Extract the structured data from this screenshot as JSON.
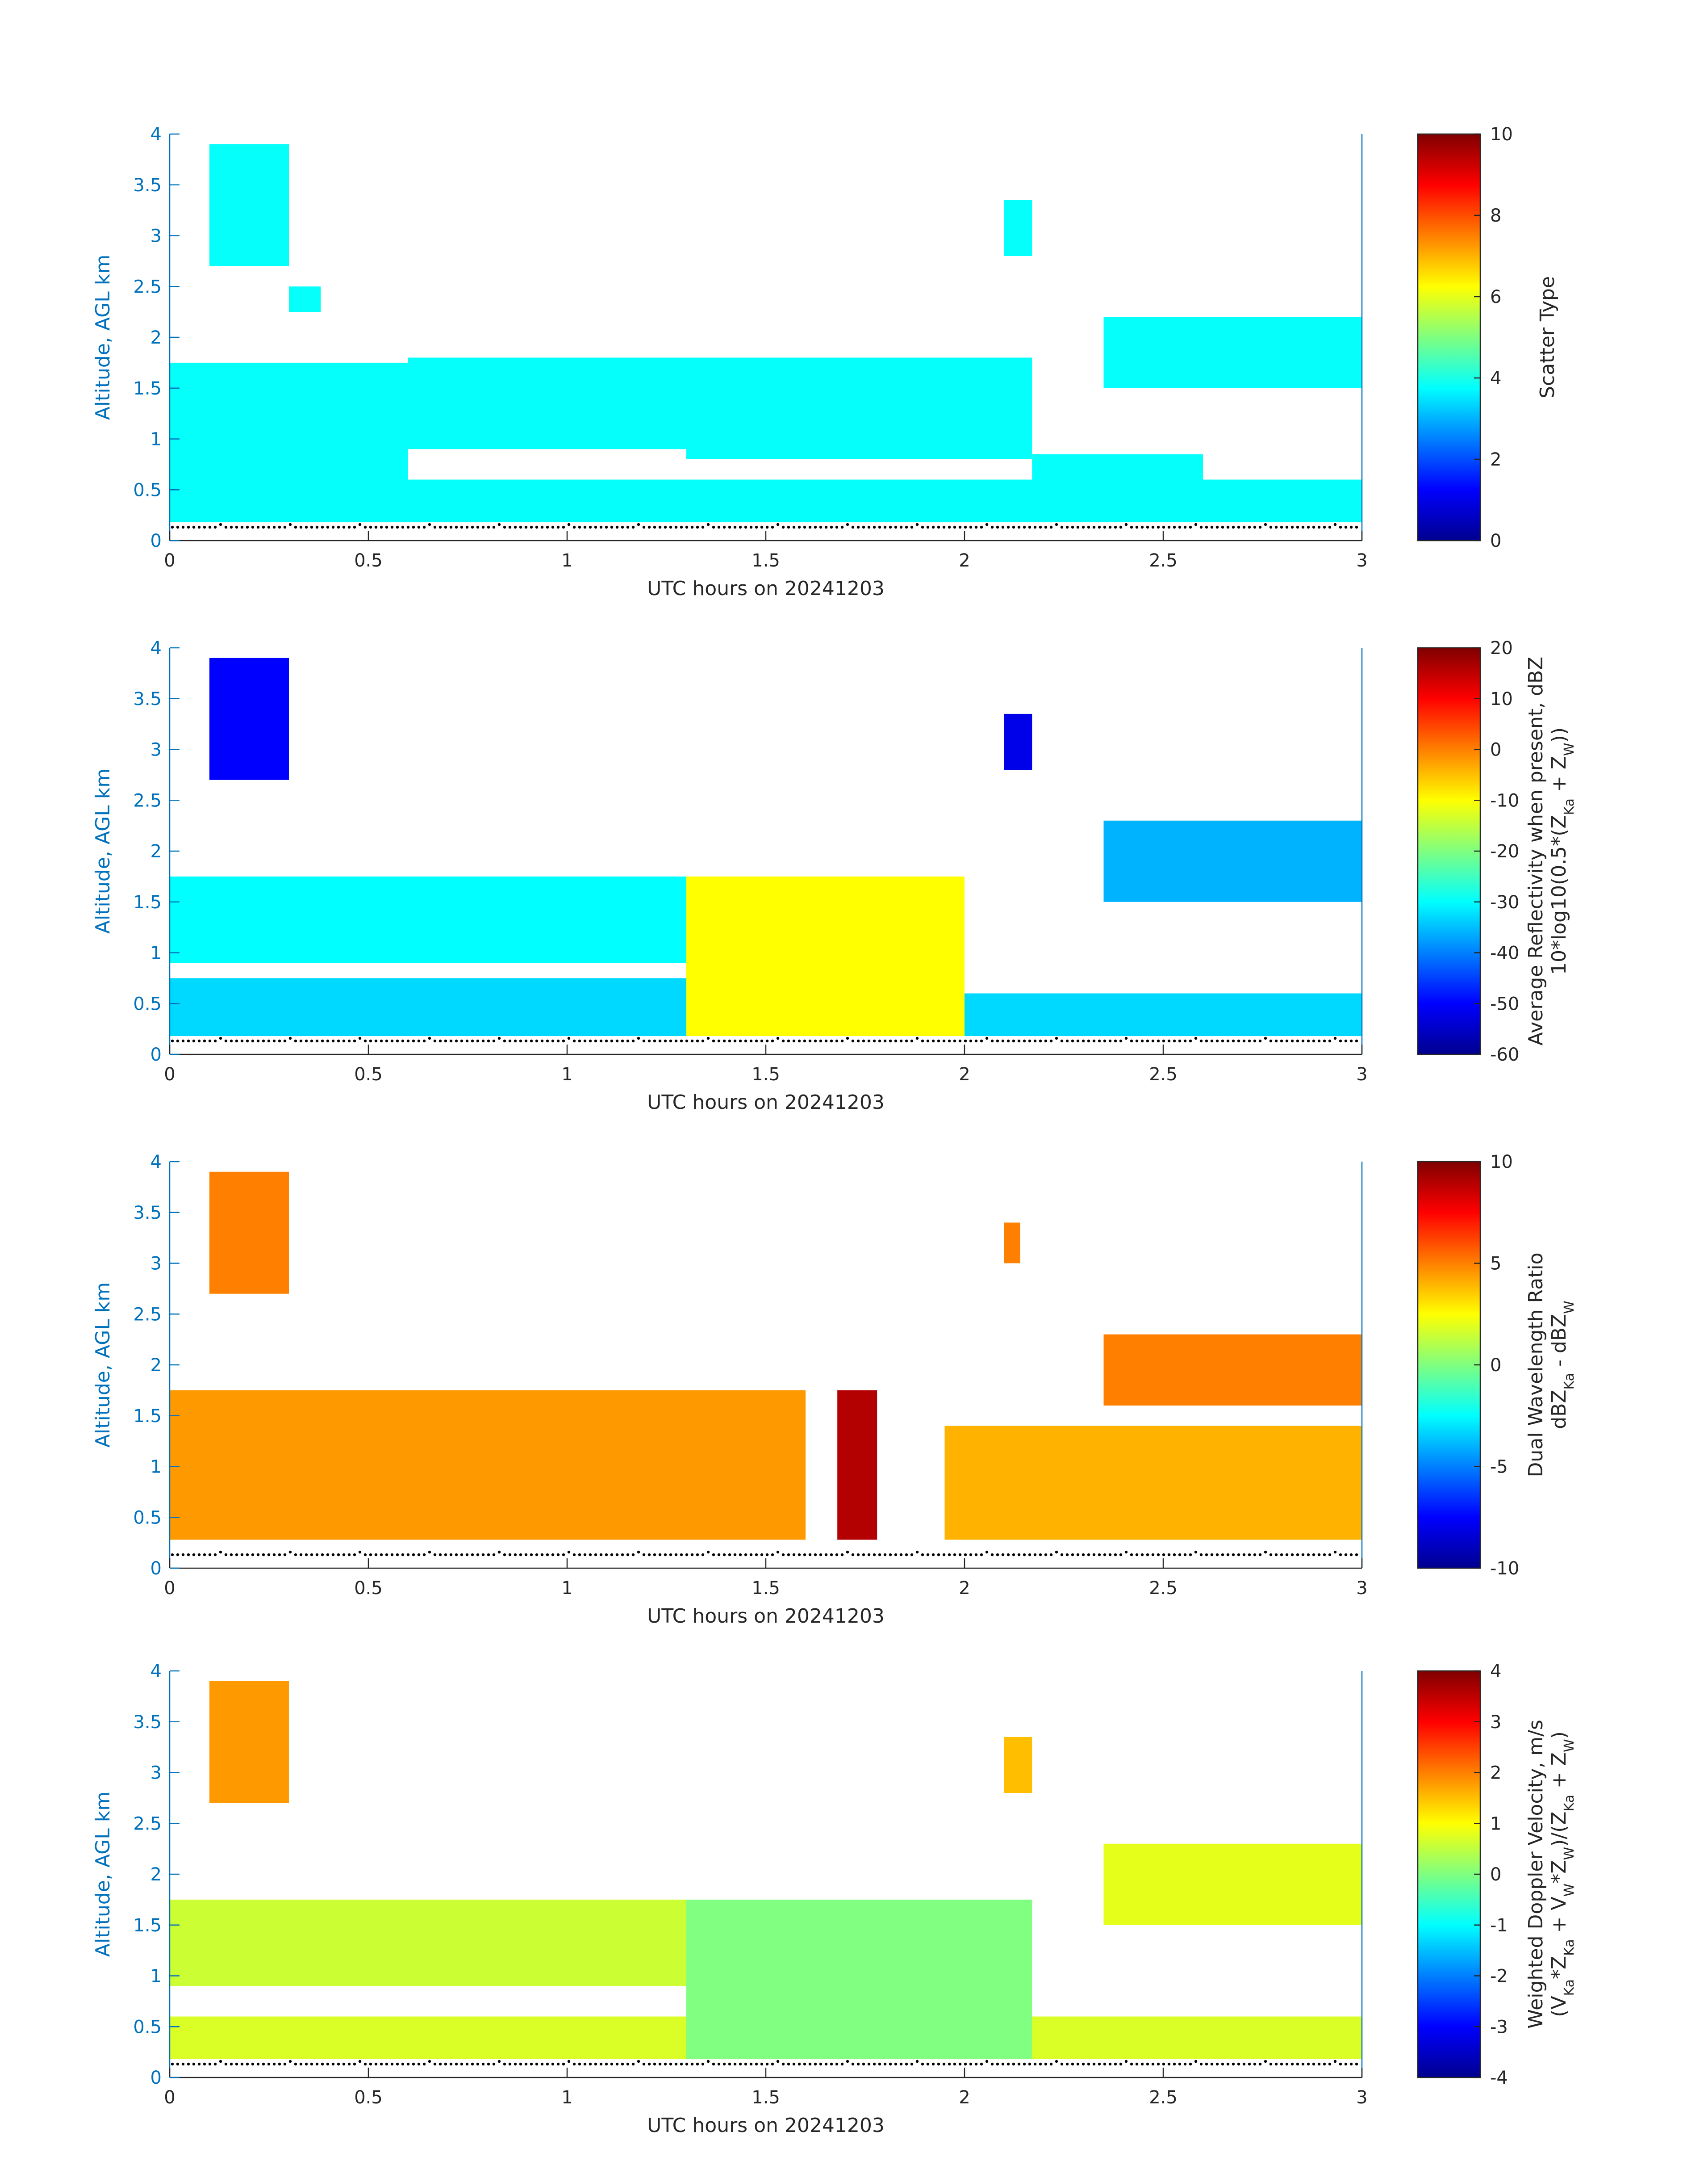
{
  "figure": {
    "date_label": "UTC hours on 20241203",
    "axis_color": "#0072BD"
  },
  "chart_data": [
    {
      "type": "heatmap",
      "name": "scatter-type",
      "xlabel": "UTC hours on 20241203",
      "ylabel": "Altitude, AGL km",
      "xlim": [
        0,
        3
      ],
      "ylim": [
        0,
        4
      ],
      "x_ticks": [
        "0",
        "0.5",
        "1",
        "1.5",
        "2",
        "2.5",
        "3"
      ],
      "y_ticks": [
        "0",
        "0.5",
        "1",
        "1.5",
        "2",
        "2.5",
        "3",
        "3.5",
        "4"
      ],
      "colorbar": {
        "label_lines": [
          "Scatter Type"
        ],
        "clim": [
          0,
          10
        ],
        "ticks": [
          "0",
          "2",
          "4",
          "6",
          "8",
          "10"
        ]
      },
      "echo_regions": [
        {
          "x": [
            0.0,
            3.0
          ],
          "y": [
            0.18,
            0.6
          ],
          "value": 3.8
        },
        {
          "x": [
            0.0,
            0.6
          ],
          "y": [
            0.6,
            1.75
          ],
          "value": 3.8
        },
        {
          "x": [
            0.6,
            1.3
          ],
          "y": [
            0.9,
            1.8
          ],
          "value": 3.8
        },
        {
          "x": [
            1.3,
            2.17
          ],
          "y": [
            0.8,
            1.8
          ],
          "value": 3.8
        },
        {
          "x": [
            2.17,
            2.6
          ],
          "y": [
            0.5,
            0.85
          ],
          "value": 3.8
        },
        {
          "x": [
            2.35,
            3.0
          ],
          "y": [
            1.5,
            2.2
          ],
          "value": 3.8
        },
        {
          "x": [
            0.1,
            0.3
          ],
          "y": [
            2.7,
            3.9
          ],
          "value": 3.8
        },
        {
          "x": [
            0.3,
            0.38
          ],
          "y": [
            2.25,
            2.5
          ],
          "value": 3.8
        },
        {
          "x": [
            2.1,
            2.17
          ],
          "y": [
            2.8,
            3.35
          ],
          "value": 3.8
        }
      ]
    },
    {
      "type": "heatmap",
      "name": "reflectivity",
      "xlabel": "UTC hours on 20241203",
      "ylabel": "Altitude, AGL km",
      "xlim": [
        0,
        3
      ],
      "ylim": [
        0,
        4
      ],
      "x_ticks": [
        "0",
        "0.5",
        "1",
        "1.5",
        "2",
        "2.5",
        "3"
      ],
      "y_ticks": [
        "0",
        "0.5",
        "1",
        "1.5",
        "2",
        "2.5",
        "3",
        "3.5",
        "4"
      ],
      "colorbar": {
        "label_lines": [
          "Average Reflectivity when present, dBZ",
          "10*log10(0.5*(Z_Ka + Z_W))"
        ],
        "clim": [
          -60,
          20
        ],
        "ticks": [
          "-60",
          "-50",
          "-40",
          "-30",
          "-20",
          "-10",
          "0",
          "10",
          "20"
        ]
      },
      "echo_regions": [
        {
          "x": [
            0.0,
            1.3
          ],
          "y": [
            0.18,
            0.75
          ],
          "value": -33
        },
        {
          "x": [
            1.3,
            2.0
          ],
          "y": [
            0.18,
            1.75
          ],
          "value": -10
        },
        {
          "x": [
            2.0,
            3.0
          ],
          "y": [
            0.18,
            0.6
          ],
          "value": -33
        },
        {
          "x": [
            0.0,
            1.3
          ],
          "y": [
            0.9,
            1.75
          ],
          "value": -30
        },
        {
          "x": [
            2.35,
            3.0
          ],
          "y": [
            1.5,
            2.3
          ],
          "value": -36
        },
        {
          "x": [
            0.1,
            0.3
          ],
          "y": [
            2.7,
            3.9
          ],
          "value": -50
        },
        {
          "x": [
            2.1,
            2.17
          ],
          "y": [
            2.8,
            3.35
          ],
          "value": -52
        }
      ]
    },
    {
      "type": "heatmap",
      "name": "dual-wavelength-ratio",
      "xlabel": "UTC hours on 20241203",
      "ylabel": "Altitude, AGL km",
      "xlim": [
        0,
        3
      ],
      "ylim": [
        0,
        4
      ],
      "x_ticks": [
        "0",
        "0.5",
        "1",
        "1.5",
        "2",
        "2.5",
        "3"
      ],
      "y_ticks": [
        "0",
        "0.5",
        "1",
        "1.5",
        "2",
        "2.5",
        "3",
        "3.5",
        "4"
      ],
      "colorbar": {
        "label_lines": [
          "Dual Wavelength Ratio",
          "dBZ_Ka - dBZ_W"
        ],
        "clim": [
          -10,
          10
        ],
        "ticks": [
          "-10",
          "-5",
          "0",
          "5",
          "10"
        ]
      },
      "echo_regions": [
        {
          "x": [
            0.0,
            1.6
          ],
          "y": [
            0.28,
            1.75
          ],
          "value": 4.5
        },
        {
          "x": [
            1.95,
            3.0
          ],
          "y": [
            0.28,
            1.4
          ],
          "value": 4
        },
        {
          "x": [
            2.35,
            3.0
          ],
          "y": [
            1.6,
            2.3
          ],
          "value": 5
        },
        {
          "x": [
            1.68,
            1.78
          ],
          "y": [
            0.28,
            1.75
          ],
          "value": 9
        },
        {
          "x": [
            0.1,
            0.3
          ],
          "y": [
            2.7,
            3.9
          ],
          "value": 5
        },
        {
          "x": [
            2.1,
            2.14
          ],
          "y": [
            3.0,
            3.4
          ],
          "value": 5
        }
      ]
    },
    {
      "type": "heatmap",
      "name": "doppler-velocity",
      "xlabel": "UTC hours on 20241203",
      "ylabel": "Altitude, AGL km",
      "xlim": [
        0,
        3
      ],
      "ylim": [
        0,
        4
      ],
      "x_ticks": [
        "0",
        "0.5",
        "1",
        "1.5",
        "2",
        "2.5",
        "3"
      ],
      "y_ticks": [
        "0",
        "0.5",
        "1",
        "1.5",
        "2",
        "2.5",
        "3",
        "3.5",
        "4"
      ],
      "colorbar": {
        "label_lines": [
          "Weighted Doppler Velocity, m/s",
          "(V_Ka*Z_Ka + V_W*Z_W)/(Z_Ka + Z_W)"
        ],
        "clim": [
          -4,
          4
        ],
        "ticks": [
          "-4",
          "-3",
          "-2",
          "-1",
          "0",
          "1",
          "2",
          "3",
          "4"
        ]
      },
      "echo_regions": [
        {
          "x": [
            0.0,
            3.0
          ],
          "y": [
            0.18,
            0.6
          ],
          "value": 0.7
        },
        {
          "x": [
            0.0,
            1.3
          ],
          "y": [
            0.9,
            1.75
          ],
          "value": 0.6
        },
        {
          "x": [
            1.3,
            2.17
          ],
          "y": [
            0.18,
            1.75
          ],
          "value": 0.0
        },
        {
          "x": [
            2.35,
            3.0
          ],
          "y": [
            1.5,
            2.3
          ],
          "value": 0.8
        },
        {
          "x": [
            0.1,
            0.3
          ],
          "y": [
            2.7,
            3.9
          ],
          "value": 1.8
        },
        {
          "x": [
            2.1,
            2.17
          ],
          "y": [
            2.8,
            3.35
          ],
          "value": 1.5
        }
      ]
    }
  ]
}
